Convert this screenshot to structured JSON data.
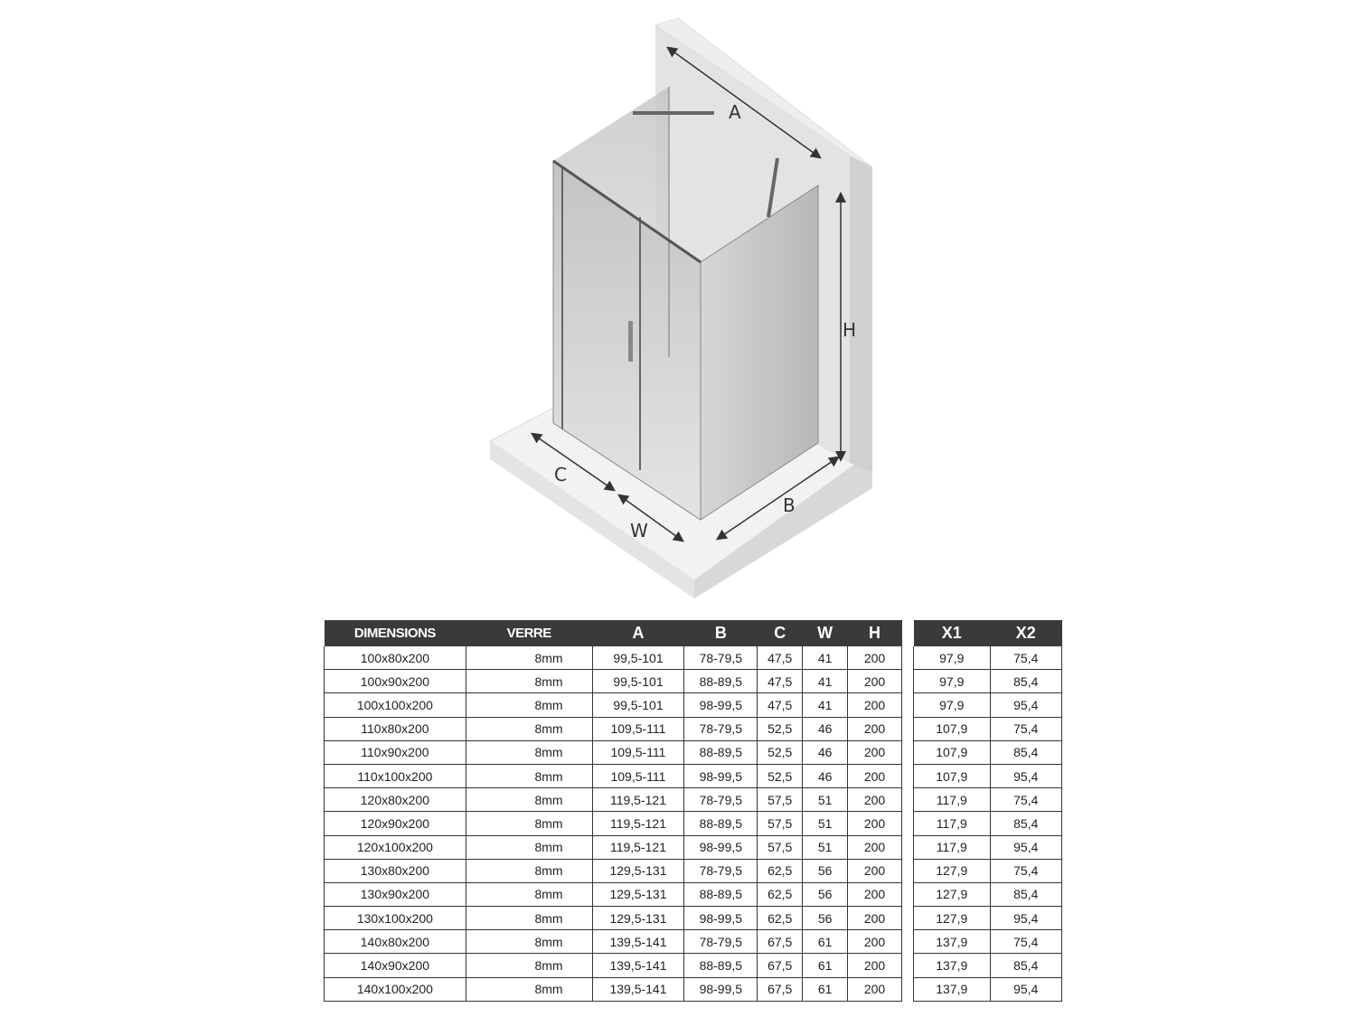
{
  "diagram": {
    "labels": {
      "A": "A",
      "B": "B",
      "C": "C",
      "W": "W",
      "H": "H"
    }
  },
  "main_table": {
    "headers": [
      "DIMENSIONS",
      "VERRE",
      "A",
      "B",
      "C",
      "W",
      "H"
    ],
    "rows": [
      [
        "100x80x200",
        "8mm",
        "99,5-101",
        "78-79,5",
        "47,5",
        "41",
        "200"
      ],
      [
        "100x90x200",
        "8mm",
        "99,5-101",
        "88-89,5",
        "47,5",
        "41",
        "200"
      ],
      [
        "100x100x200",
        "8mm",
        "99,5-101",
        "98-99,5",
        "47,5",
        "41",
        "200"
      ],
      [
        "110x80x200",
        "8mm",
        "109,5-111",
        "78-79,5",
        "52,5",
        "46",
        "200"
      ],
      [
        "110x90x200",
        "8mm",
        "109,5-111",
        "88-89,5",
        "52,5",
        "46",
        "200"
      ],
      [
        "110x100x200",
        "8mm",
        "109,5-111",
        "98-99,5",
        "52,5",
        "46",
        "200"
      ],
      [
        "120x80x200",
        "8mm",
        "119,5-121",
        "78-79,5",
        "57,5",
        "51",
        "200"
      ],
      [
        "120x90x200",
        "8mm",
        "119,5-121",
        "88-89,5",
        "57,5",
        "51",
        "200"
      ],
      [
        "120x100x200",
        "8mm",
        "119,5-121",
        "98-99,5",
        "57,5",
        "51",
        "200"
      ],
      [
        "130x80x200",
        "8mm",
        "129,5-131",
        "78-79,5",
        "62,5",
        "56",
        "200"
      ],
      [
        "130x90x200",
        "8mm",
        "129,5-131",
        "88-89,5",
        "62,5",
        "56",
        "200"
      ],
      [
        "130x100x200",
        "8mm",
        "129,5-131",
        "98-99,5",
        "62,5",
        "56",
        "200"
      ],
      [
        "140x80x200",
        "8mm",
        "139,5-141",
        "78-79,5",
        "67,5",
        "61",
        "200"
      ],
      [
        "140x90x200",
        "8mm",
        "139,5-141",
        "88-89,5",
        "67,5",
        "61",
        "200"
      ],
      [
        "140x100x200",
        "8mm",
        "139,5-141",
        "98-99,5",
        "67,5",
        "61",
        "200"
      ]
    ]
  },
  "x_table": {
    "headers": [
      "X1",
      "X2"
    ],
    "rows": [
      [
        "97,9",
        "75,4"
      ],
      [
        "97,9",
        "85,4"
      ],
      [
        "97,9",
        "95,4"
      ],
      [
        "107,9",
        "75,4"
      ],
      [
        "107,9",
        "85,4"
      ],
      [
        "107,9",
        "95,4"
      ],
      [
        "117,9",
        "75,4"
      ],
      [
        "117,9",
        "85,4"
      ],
      [
        "117,9",
        "95,4"
      ],
      [
        "127,9",
        "75,4"
      ],
      [
        "127,9",
        "85,4"
      ],
      [
        "127,9",
        "95,4"
      ],
      [
        "137,9",
        "75,4"
      ],
      [
        "137,9",
        "85,4"
      ],
      [
        "137,9",
        "95,4"
      ]
    ]
  },
  "colors": {
    "header_bg": "#3a3a3a",
    "wall": "#e6e6e6",
    "glass": "#c8c8c8"
  }
}
